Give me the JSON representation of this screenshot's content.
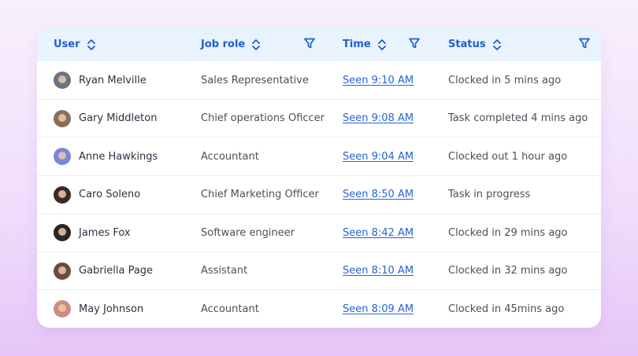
{
  "columns": {
    "user": "User",
    "job_role": "Job role",
    "time": "Time",
    "status": "Status"
  },
  "icons": {
    "sort": "sort-icon",
    "filter": "filter-icon"
  },
  "colors": {
    "accent": "#1f5fcf",
    "link": "#2663d6",
    "header_bg": "#e8f3fe"
  },
  "rows": [
    {
      "name": "Ryan Melville",
      "role": "Sales Representative",
      "time": "Seen 9:10 AM",
      "status": "Clocked in 5 mins ago",
      "avatar_color": "#6b7380"
    },
    {
      "name": "Gary Middleton",
      "role": "Chief operations Oficcer",
      "time": "Seen 9:08 AM",
      "status": "Task completed 4 mins ago",
      "avatar_color": "#8a6e5c"
    },
    {
      "name": "Anne Hawkings",
      "role": "Accountant",
      "time": "Seen 9:04 AM",
      "status": "Clocked out 1 hour ago",
      "avatar_color": "#7a86d6"
    },
    {
      "name": "Caro Soleno",
      "role": "Chief Marketing Officer",
      "time": "Seen 8:50 AM",
      "status": "Task in progress",
      "avatar_color": "#3a2a22"
    },
    {
      "name": "James Fox",
      "role": "Software engineer",
      "time": "Seen 8:42 AM",
      "status": "Clocked in 29 mins ago",
      "avatar_color": "#2a2624"
    },
    {
      "name": "Gabriella Page",
      "role": "Assistant",
      "time": "Seen 8:10 AM",
      "status": "Clocked in 32 mins ago",
      "avatar_color": "#6e4a3e"
    },
    {
      "name": "May Johnson",
      "role": "Accountant",
      "time": "Seen 8:09 AM",
      "status": "Clocked in 45mins ago",
      "avatar_color": "#c98f7e"
    }
  ]
}
